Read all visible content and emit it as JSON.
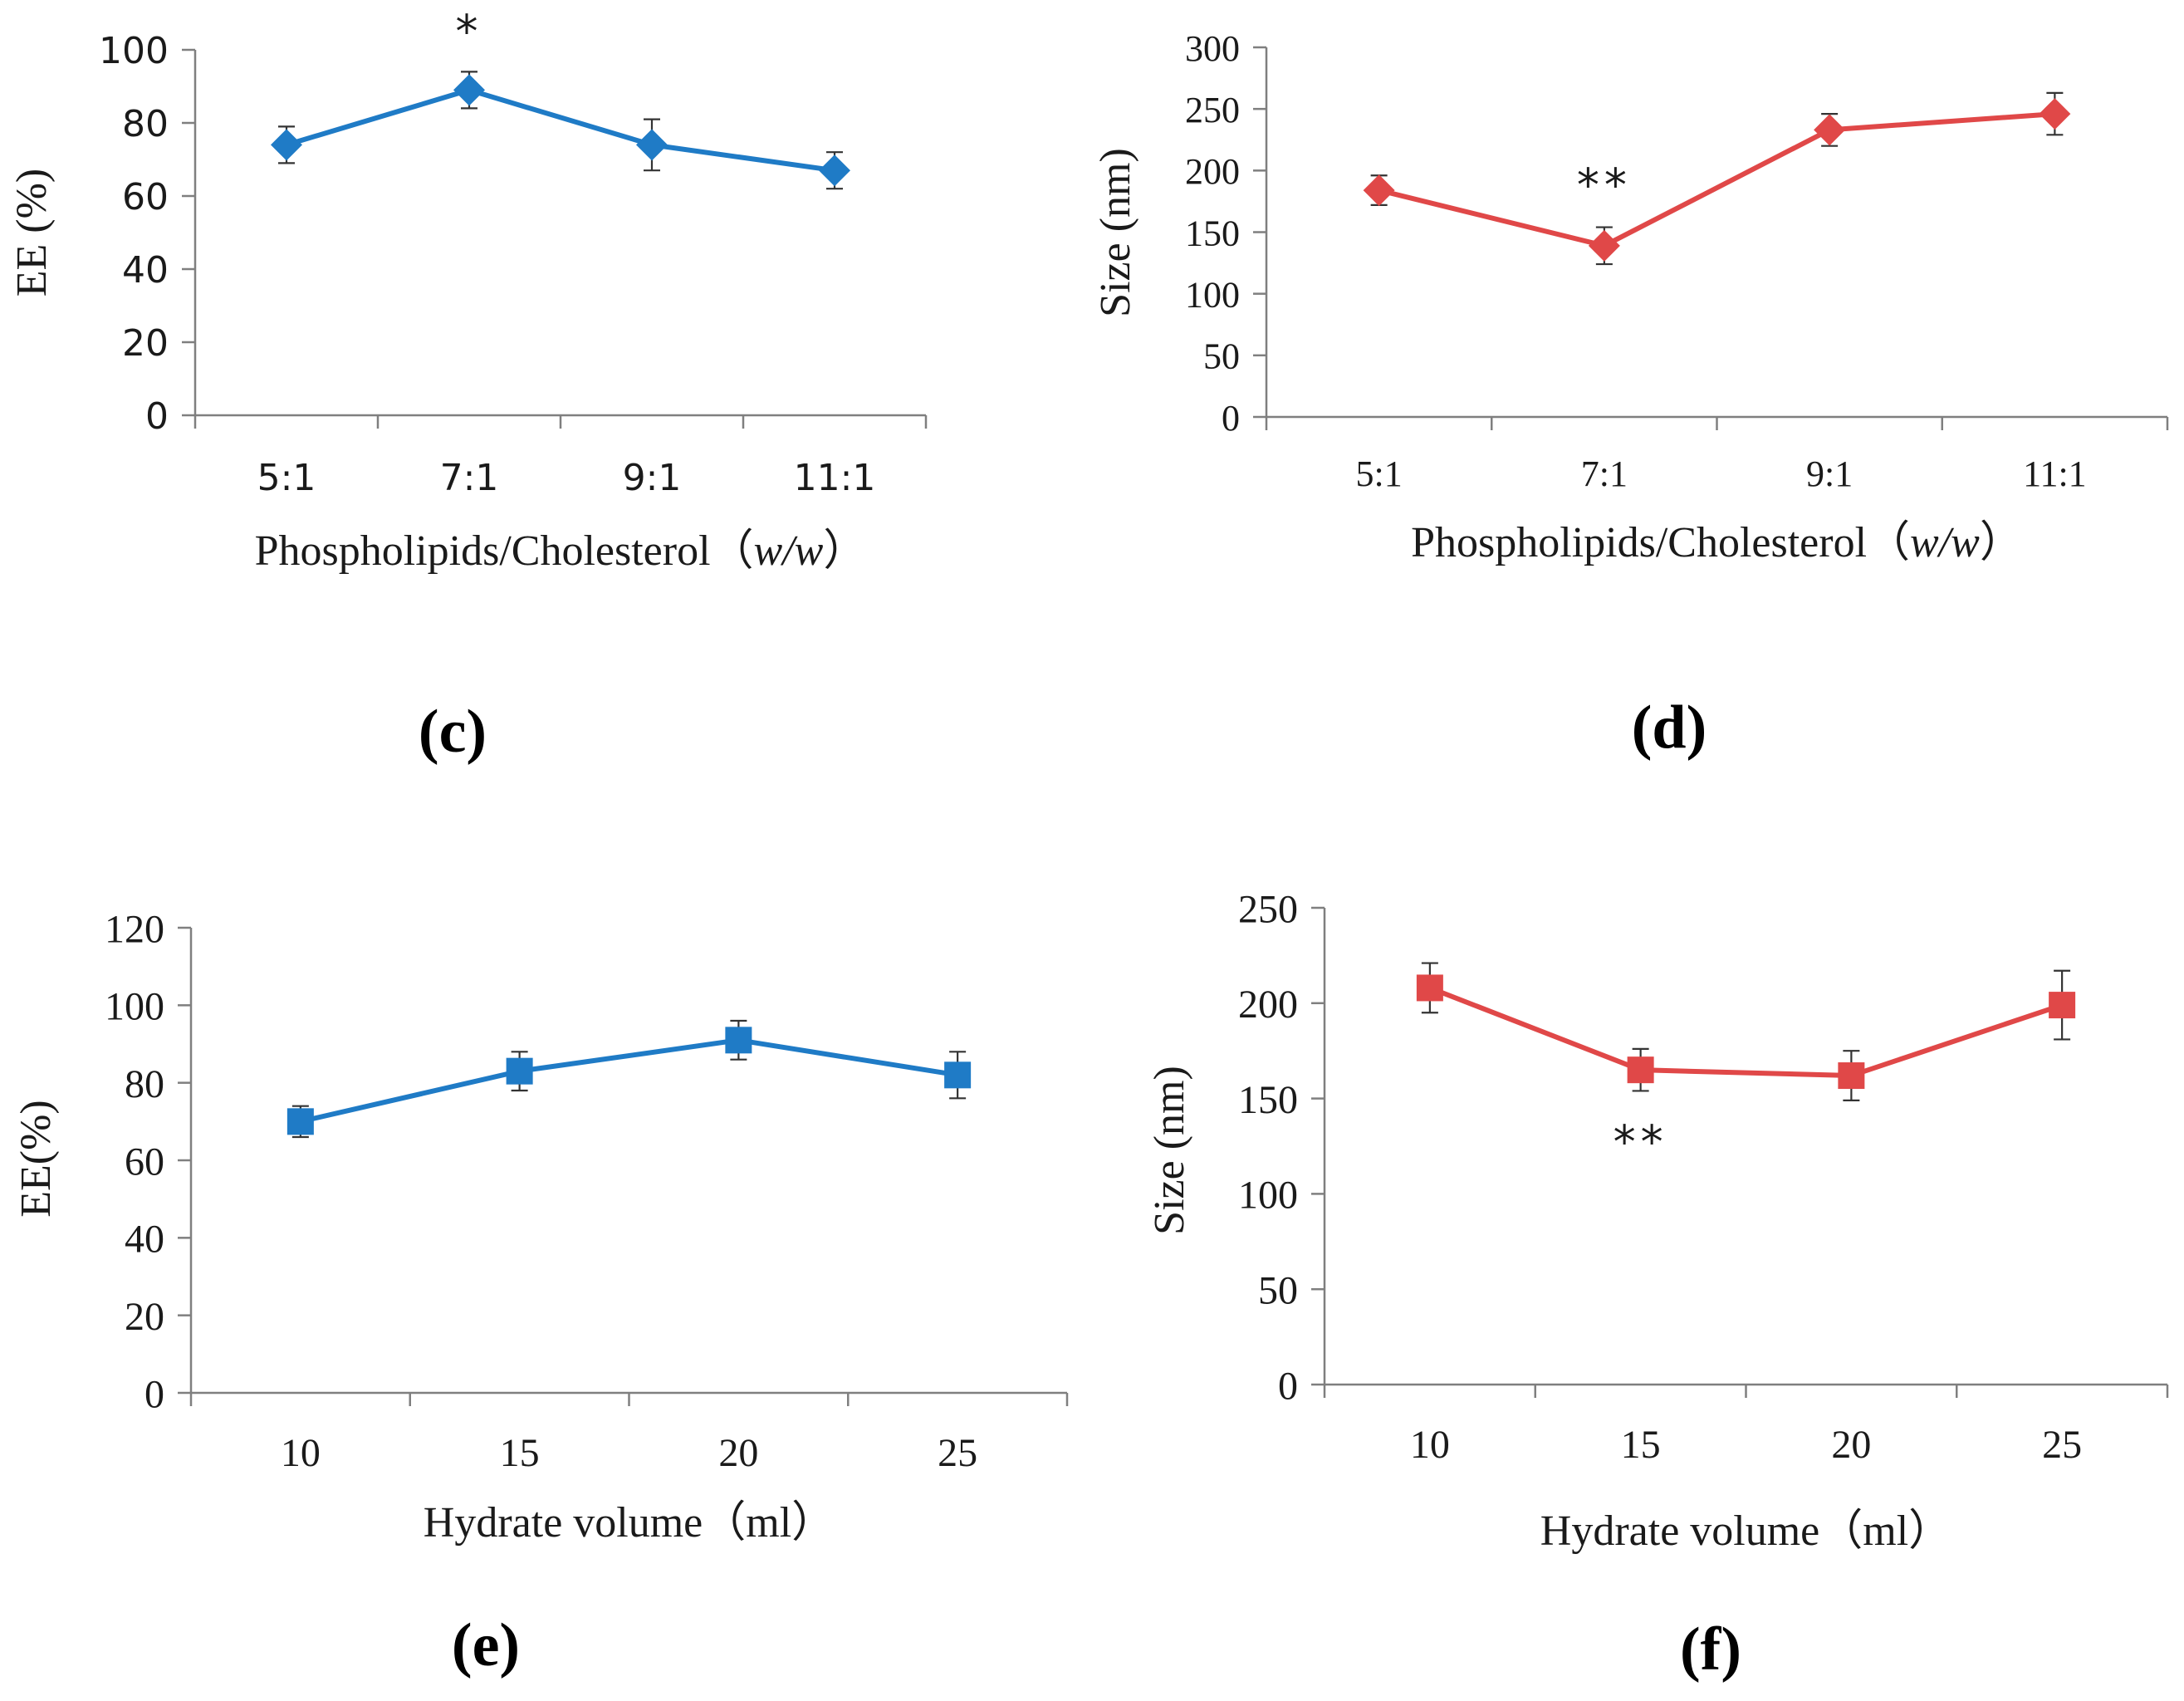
{
  "chart_data": [
    {
      "id": "c",
      "panel_label": "(c)",
      "type": "line",
      "marker": "diamond",
      "color": "#1f7bc6",
      "xlabel": "Phospholipids/Cholesterol（w/w）",
      "xlabel_main": "Phospholipids/Cholesterol",
      "xlabel_unit": "w/w",
      "ylabel": "EE (%)",
      "categories": [
        "5:1",
        "7:1",
        "9:1",
        "11:1"
      ],
      "values": [
        74,
        89,
        74,
        67
      ],
      "errors": [
        5,
        5,
        7,
        5
      ],
      "ylim": [
        0,
        100
      ],
      "yticks": [
        0,
        20,
        40,
        60,
        80,
        100
      ],
      "yticks_labels": [
        "0",
        "20",
        "40",
        "60",
        "80",
        "100"
      ],
      "annotations": [
        {
          "category": "7:1",
          "text": "*"
        }
      ]
    },
    {
      "id": "d",
      "panel_label": "(d)",
      "type": "line",
      "marker": "diamond",
      "color": "#e04848",
      "xlabel": "Phospholipids/Cholesterol（w/w）",
      "xlabel_main": "Phospholipids/Cholesterol",
      "xlabel_unit": "w/w",
      "ylabel": "Size (nm)",
      "categories": [
        "5:1",
        "7:1",
        "9:1",
        "11:1"
      ],
      "values": [
        184,
        139,
        233,
        246
      ],
      "errors": [
        12,
        15,
        13,
        17
      ],
      "ylim": [
        0,
        300
      ],
      "yticks": [
        0,
        50,
        100,
        150,
        200,
        250,
        300
      ],
      "yticks_labels": [
        "0",
        "50",
        "100",
        "150",
        "200",
        "250",
        "300"
      ],
      "annotations": [
        {
          "category": "7:1",
          "text": "**"
        }
      ]
    },
    {
      "id": "e",
      "panel_label": "(e)",
      "type": "line",
      "marker": "square",
      "color": "#1f7bc6",
      "xlabel": "Hydrate volume（ml）",
      "xlabel_main": "Hydrate volume",
      "xlabel_unit": "ml",
      "ylabel": "EE(%)",
      "categories": [
        "10",
        "15",
        "20",
        "25"
      ],
      "values": [
        70,
        83,
        91,
        82
      ],
      "errors": [
        4,
        5,
        5,
        6
      ],
      "ylim": [
        0,
        120
      ],
      "yticks": [
        0,
        20,
        40,
        60,
        80,
        100,
        120
      ],
      "yticks_labels": [
        "0",
        "20",
        "40",
        "60",
        "80",
        "100",
        "120"
      ],
      "annotations": []
    },
    {
      "id": "f",
      "panel_label": "(f)",
      "type": "line",
      "marker": "square",
      "color": "#e04848",
      "xlabel": "Hydrate volume（ml）",
      "xlabel_main": "Hydrate volume",
      "xlabel_unit": "ml",
      "ylabel": "Size (nm)",
      "categories": [
        "10",
        "15",
        "20",
        "25"
      ],
      "values": [
        208,
        165,
        162,
        199
      ],
      "errors": [
        13,
        11,
        13,
        18
      ],
      "ylim": [
        0,
        250
      ],
      "yticks": [
        0,
        50,
        100,
        150,
        200,
        250
      ],
      "yticks_labels": [
        "0",
        "50",
        "100",
        "150",
        "200",
        "250"
      ],
      "annotations": [
        {
          "category": "15",
          "text": "**",
          "position": "below"
        }
      ]
    }
  ]
}
